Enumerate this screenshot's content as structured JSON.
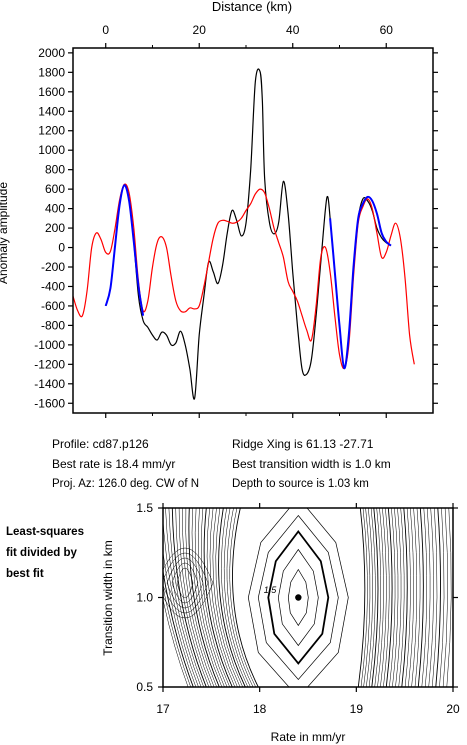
{
  "chart_data": [
    {
      "type": "line",
      "xlabel": "Distance (km)",
      "ylabel": "Anomaly amplitude",
      "xlim": [
        -7,
        70
      ],
      "ylim": [
        -1700,
        2050
      ],
      "x_ticks": [
        0,
        20,
        40,
        60
      ],
      "x_tick_labels": [
        "0",
        "20",
        "40",
        "60"
      ],
      "y_ticks": [
        2000,
        1800,
        1600,
        1400,
        1200,
        1000,
        800,
        600,
        400,
        200,
        0,
        -200,
        -400,
        -600,
        -800,
        -1000,
        -1200,
        -1400,
        -1600
      ],
      "y_tick_labels": [
        "2000",
        "1800",
        "1600",
        "1400",
        "1200",
        "1000",
        "800",
        "600",
        "400",
        "200",
        "0",
        "-200",
        "-400",
        "-600",
        "-800",
        "-1000",
        "-1200",
        "-1400",
        "-1600"
      ],
      "grid": false,
      "series": [
        {
          "color": "#000000",
          "x": [
            0,
            1,
            2,
            3,
            4,
            5,
            6,
            7,
            8,
            9,
            10,
            11,
            12,
            13,
            14,
            15,
            16,
            17,
            18,
            19,
            20,
            21,
            22,
            23,
            24,
            25,
            26,
            27,
            28,
            29,
            30,
            31,
            32,
            33,
            33.5,
            34,
            35,
            36,
            37,
            38,
            39,
            40,
            41,
            42,
            43,
            44,
            45,
            46,
            47,
            47.5,
            48,
            49,
            50,
            51,
            52,
            53,
            54,
            55,
            56,
            57,
            58,
            59,
            60,
            61
          ],
          "y": [
            -600,
            -420,
            20,
            450,
            640,
            480,
            60,
            -500,
            -750,
            -820,
            -900,
            -950,
            -870,
            -900,
            -1000,
            -980,
            -860,
            -1000,
            -1250,
            -1550,
            -900,
            -500,
            -150,
            -250,
            -370,
            -180,
            150,
            380,
            280,
            120,
            250,
            800,
            1700,
            1810,
            1500,
            700,
            260,
            140,
            260,
            680,
            350,
            -250,
            -800,
            -1250,
            -1300,
            -1150,
            -700,
            -150,
            400,
            520,
            300,
            -250,
            -800,
            -1240,
            -900,
            -200,
            300,
            500,
            480,
            380,
            200,
            100,
            50,
            20
          ]
        },
        {
          "color": "#ff0000",
          "x": [
            -7,
            -6,
            -5,
            -4,
            -3,
            -2,
            -1,
            0,
            1,
            2,
            3,
            4,
            5,
            6,
            7,
            8,
            9,
            10,
            11,
            12,
            13,
            14,
            15,
            16,
            17,
            18,
            19,
            20,
            21,
            22,
            23,
            24,
            25,
            26,
            27,
            28,
            29,
            30,
            31,
            32,
            33,
            34,
            35,
            36,
            37,
            38,
            39,
            40,
            41,
            42,
            43,
            44,
            45,
            46,
            47,
            48,
            49,
            50,
            51,
            52,
            53,
            54,
            55,
            56,
            57,
            58,
            59,
            60,
            61,
            62,
            63,
            64,
            65,
            66
          ],
          "y": [
            -500,
            -650,
            -700,
            -450,
            0,
            150,
            80,
            -50,
            -40,
            200,
            500,
            650,
            560,
            200,
            -350,
            -650,
            -550,
            -200,
            50,
            110,
            0,
            -300,
            -550,
            -650,
            -660,
            -620,
            -630,
            -600,
            -400,
            -150,
            100,
            250,
            280,
            270,
            250,
            260,
            300,
            380,
            450,
            550,
            600,
            560,
            400,
            200,
            50,
            -100,
            -350,
            -450,
            -550,
            -700,
            -850,
            -950,
            -600,
            -100,
            0,
            -250,
            -700,
            -1100,
            -1240,
            -1000,
            -300,
            250,
            420,
            500,
            400,
            150,
            -100,
            -50,
            120,
            250,
            100,
            -300,
            -900,
            -1200
          ]
        },
        {
          "color": "#0000ff",
          "x": [
            0,
            1,
            2,
            3,
            4,
            5,
            6,
            7,
            8,
            48,
            49,
            50,
            51,
            52,
            53,
            54,
            55,
            56,
            57,
            58,
            59,
            60,
            61
          ],
          "y": [
            -600,
            -420,
            20,
            450,
            640,
            480,
            60,
            -400,
            -700,
            300,
            -250,
            -800,
            -1240,
            -900,
            -200,
            300,
            450,
            520,
            480,
            350,
            150,
            60,
            20
          ]
        }
      ]
    },
    {
      "type": "contour",
      "xlabel": "Rate in mm/yr",
      "ylabel": "Transition width in km",
      "xlim": [
        17,
        20
      ],
      "ylim": [
        0.5,
        1.5
      ],
      "x_ticks": [
        17,
        18,
        19,
        20
      ],
      "x_tick_labels": [
        "17",
        "18",
        "19",
        "20"
      ],
      "y_ticks": [
        0.5,
        1.0,
        1.5
      ],
      "y_tick_labels": [
        "0.5",
        "1.0",
        "1.5"
      ],
      "contour_label": "1.5",
      "best_fit_point": {
        "x": 18.4,
        "y": 1.0
      }
    }
  ],
  "info": {
    "profile": "Profile: cd87.p126",
    "ridge": "Ridge Xing is 61.13 -27.71",
    "best_rate": "Best rate is 18.4 mm/yr",
    "best_width": "Best transition width is 1.0 km",
    "proj": "Proj. Az: 126.0 deg. CW of N",
    "depth": "Depth to source is   1.03 km"
  },
  "side_label": [
    "Least-squares",
    "fit divided by",
    "best fit"
  ]
}
